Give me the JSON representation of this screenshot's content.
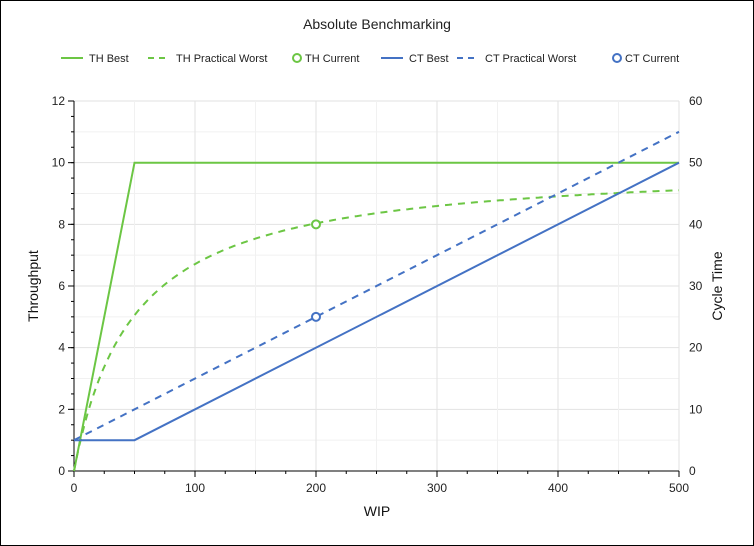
{
  "chart_data": {
    "type": "line",
    "title": "Absolute Benchmarking",
    "xlabel": "WIP",
    "ylabel": "Throughput",
    "y2label": "Cycle Time",
    "xlim": [
      0,
      500
    ],
    "ylim": [
      0,
      12
    ],
    "y2lim": [
      0,
      60
    ],
    "xticks": [
      0,
      100,
      200,
      300,
      400,
      500
    ],
    "yticks": [
      0,
      2,
      4,
      6,
      8,
      10,
      12
    ],
    "y2ticks": [
      0,
      10,
      20,
      30,
      40,
      50,
      60
    ],
    "grid": true,
    "legend_position": "top",
    "series": [
      {
        "name": "TH Best",
        "axis": "left",
        "style": "solid",
        "color": "#6cc644",
        "x": [
          0,
          50,
          500
        ],
        "y": [
          0,
          10,
          10
        ]
      },
      {
        "name": "TH Practical Worst",
        "axis": "left",
        "style": "dashed",
        "color": "#6cc644",
        "x": [
          0,
          10,
          25,
          50,
          75,
          100,
          150,
          200,
          250,
          300,
          350,
          400,
          450,
          500
        ],
        "y": [
          0,
          1.67,
          3.33,
          5.0,
          6.0,
          6.67,
          7.5,
          8.0,
          8.33,
          8.57,
          8.75,
          8.89,
          9.0,
          9.09
        ]
      },
      {
        "name": "TH Current",
        "axis": "left",
        "style": "marker",
        "color": "#6cc644",
        "x": [
          200
        ],
        "y": [
          8
        ]
      },
      {
        "name": "CT Best",
        "axis": "right",
        "style": "solid",
        "color": "#4472c4",
        "x": [
          0,
          50,
          500
        ],
        "y": [
          5,
          5,
          50
        ]
      },
      {
        "name": "CT Practical Worst",
        "axis": "right",
        "style": "dashed",
        "color": "#4472c4",
        "x": [
          0,
          500
        ],
        "y": [
          5,
          55
        ]
      },
      {
        "name": "CT Current",
        "axis": "right",
        "style": "marker",
        "color": "#4472c4",
        "x": [
          200
        ],
        "y": [
          25
        ]
      }
    ]
  }
}
